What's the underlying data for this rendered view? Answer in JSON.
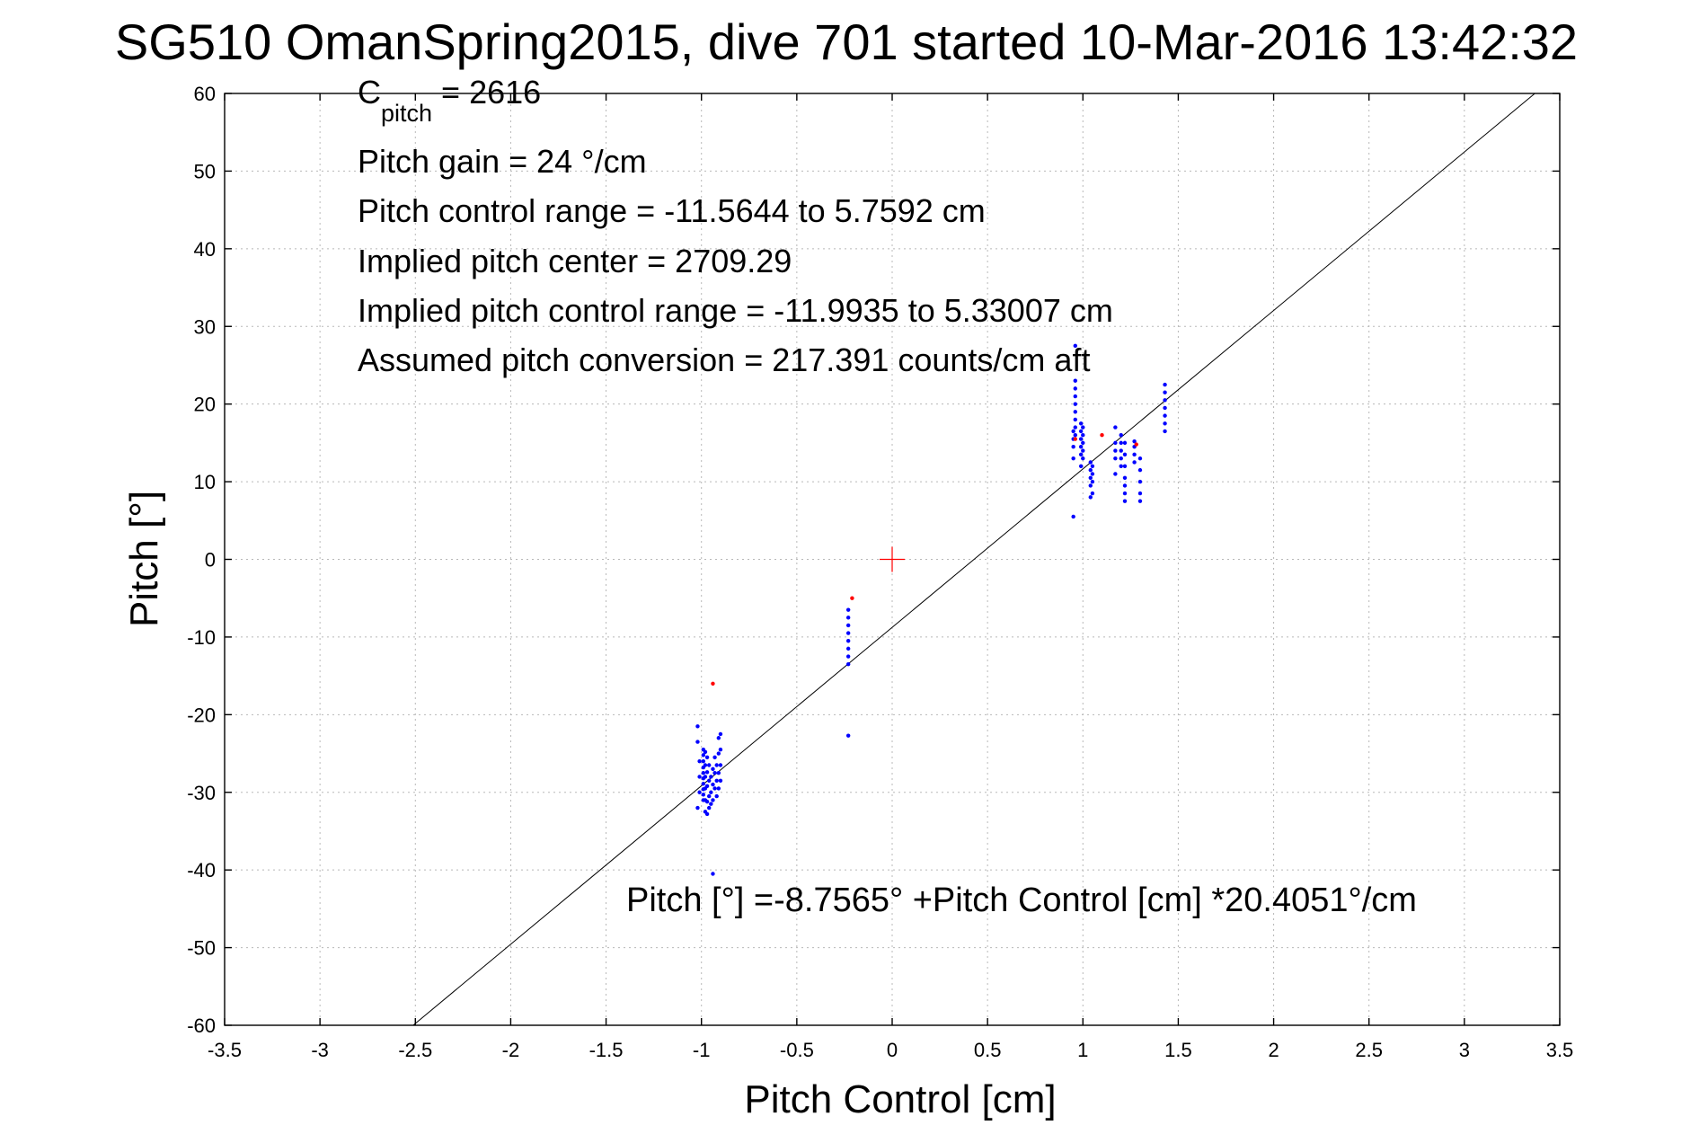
{
  "chart_data": {
    "type": "scatter",
    "title": "SG510 OmanSpring2015, dive 701 started 10-Mar-2016 13:42:32",
    "xlabel": "Pitch Control [cm]",
    "ylabel": "Pitch [°]",
    "xlim": [
      -3.5,
      3.5
    ],
    "ylim": [
      -60,
      60
    ],
    "xticks": [
      -3.5,
      -3,
      -2.5,
      -2,
      -1.5,
      -1,
      -0.5,
      0,
      0.5,
      1,
      1.5,
      2,
      2.5,
      3,
      3.5
    ],
    "yticks": [
      -60,
      -50,
      -40,
      -30,
      -20,
      -10,
      0,
      10,
      20,
      30,
      40,
      50,
      60
    ],
    "grid": true,
    "colors": {
      "observed": "#0000ff",
      "excluded": "#ff0000",
      "fit_line": "#000000",
      "center_marker": "#ff0000"
    },
    "annotations": {
      "c_pitch_symbol": "C",
      "c_pitch_subscript": "pitch",
      "c_pitch_value": " = 2616",
      "pitch_gain": "Pitch gain = 24 °/cm",
      "pitch_control_range": "Pitch control range = -11.5644 to 5.7592 cm",
      "implied_pitch_center": "Implied pitch center = 2709.29",
      "implied_pitch_control_range": "Implied pitch control range = -11.9935 to 5.33007 cm",
      "assumed_pitch_conversion": "Assumed pitch conversion = 217.391 counts/cm aft",
      "fit_equation": "Pitch [°] =-8.7565° +Pitch Control [cm] *20.4051°/cm"
    },
    "fit_line": {
      "intercept": -8.7565,
      "slope": 20.4051
    },
    "center_marker": {
      "x": 0,
      "y": 0
    },
    "series": [
      {
        "color": "#0000ff",
        "points": [
          [
            -1.02,
            -21.5
          ],
          [
            -1.02,
            -23.5
          ],
          [
            -1.01,
            -26
          ],
          [
            -1.01,
            -28
          ],
          [
            -1.01,
            -30
          ],
          [
            -1.02,
            -32
          ],
          [
            -0.99,
            -24.5
          ],
          [
            -0.99,
            -25.2
          ],
          [
            -0.99,
            -26
          ],
          [
            -0.99,
            -26.8
          ],
          [
            -0.99,
            -27.5
          ],
          [
            -0.99,
            -28.2
          ],
          [
            -0.99,
            -28.9
          ],
          [
            -0.99,
            -29.6
          ],
          [
            -0.99,
            -30.3
          ],
          [
            -0.99,
            -31
          ],
          [
            -0.98,
            -24.8
          ],
          [
            -0.98,
            -26.5
          ],
          [
            -0.98,
            -28
          ],
          [
            -0.98,
            -29.5
          ],
          [
            -0.98,
            -31
          ],
          [
            -0.98,
            -32.5
          ],
          [
            -0.97,
            -25.5
          ],
          [
            -0.97,
            -27.4
          ],
          [
            -0.97,
            -29.2
          ],
          [
            -0.97,
            -31.2
          ],
          [
            -0.97,
            -32.8
          ],
          [
            -0.96,
            -26.5
          ],
          [
            -0.96,
            -28.5
          ],
          [
            -0.96,
            -30.5
          ],
          [
            -0.96,
            -32
          ],
          [
            -0.95,
            -28
          ],
          [
            -0.95,
            -30
          ],
          [
            -0.95,
            -31.5
          ],
          [
            -0.94,
            -40.5
          ],
          [
            -0.94,
            -27
          ],
          [
            -0.94,
            -29
          ],
          [
            -0.94,
            -31
          ],
          [
            -0.93,
            -25.5
          ],
          [
            -0.93,
            -27.5
          ],
          [
            -0.93,
            -29.5
          ],
          [
            -0.92,
            -26.5
          ],
          [
            -0.92,
            -28.5
          ],
          [
            -0.92,
            -30.5
          ],
          [
            -0.91,
            -23
          ],
          [
            -0.91,
            -25
          ],
          [
            -0.91,
            -27.5
          ],
          [
            -0.91,
            -29.5
          ],
          [
            -0.9,
            -22.5
          ],
          [
            -0.9,
            -24.5
          ],
          [
            -0.9,
            -26.5
          ],
          [
            -0.9,
            -28.5
          ],
          [
            -0.23,
            -6.5
          ],
          [
            -0.23,
            -7.5
          ],
          [
            -0.23,
            -8.5
          ],
          [
            -0.23,
            -9.5
          ],
          [
            -0.23,
            -10.5
          ],
          [
            -0.23,
            -11.5
          ],
          [
            -0.23,
            -12.5
          ],
          [
            -0.23,
            -13.5
          ],
          [
            -0.23,
            -22.7
          ],
          [
            0.95,
            5.5
          ],
          [
            0.95,
            13
          ],
          [
            0.95,
            14.5
          ],
          [
            0.95,
            15.5
          ],
          [
            0.95,
            16.5
          ],
          [
            0.96,
            16
          ],
          [
            0.96,
            17
          ],
          [
            0.96,
            18
          ],
          [
            0.96,
            19
          ],
          [
            0.96,
            20
          ],
          [
            0.96,
            21
          ],
          [
            0.96,
            22
          ],
          [
            0.96,
            23
          ],
          [
            0.96,
            27.5
          ],
          [
            0.99,
            12
          ],
          [
            0.99,
            13.5
          ],
          [
            0.99,
            14.5
          ],
          [
            0.99,
            15.5
          ],
          [
            0.99,
            16.5
          ],
          [
            0.99,
            17.5
          ],
          [
            1.0,
            13
          ],
          [
            1.0,
            14
          ],
          [
            1.0,
            15
          ],
          [
            1.0,
            16
          ],
          [
            1.0,
            17
          ],
          [
            1.04,
            8
          ],
          [
            1.04,
            9.5
          ],
          [
            1.04,
            10.5
          ],
          [
            1.04,
            11.5
          ],
          [
            1.04,
            12.5
          ],
          [
            1.05,
            8.5
          ],
          [
            1.05,
            10
          ],
          [
            1.05,
            11
          ],
          [
            1.05,
            12
          ],
          [
            1.17,
            11
          ],
          [
            1.17,
            13
          ],
          [
            1.17,
            14
          ],
          [
            1.17,
            15
          ],
          [
            1.17,
            17
          ],
          [
            1.2,
            12
          ],
          [
            1.2,
            13
          ],
          [
            1.2,
            14
          ],
          [
            1.2,
            15
          ],
          [
            1.2,
            16
          ],
          [
            1.22,
            7.5
          ],
          [
            1.22,
            8.5
          ],
          [
            1.22,
            9.5
          ],
          [
            1.22,
            10.5
          ],
          [
            1.22,
            12
          ],
          [
            1.22,
            13.5
          ],
          [
            1.22,
            15
          ],
          [
            1.27,
            12.5
          ],
          [
            1.27,
            13.5
          ],
          [
            1.27,
            14.5
          ],
          [
            1.27,
            15.2
          ],
          [
            1.3,
            7.5
          ],
          [
            1.3,
            8.5
          ],
          [
            1.3,
            10
          ],
          [
            1.3,
            11.5
          ],
          [
            1.3,
            13
          ],
          [
            1.43,
            16.5
          ],
          [
            1.43,
            17.5
          ],
          [
            1.43,
            18.5
          ],
          [
            1.43,
            19.5
          ],
          [
            1.43,
            20.5
          ],
          [
            1.43,
            21.5
          ],
          [
            1.43,
            22.5
          ]
        ]
      },
      {
        "color": "#ff0000",
        "points": [
          [
            -0.94,
            -16
          ],
          [
            -0.21,
            -5
          ],
          [
            0.96,
            15.5
          ],
          [
            1.1,
            16
          ],
          [
            1.28,
            14.8
          ]
        ]
      }
    ]
  }
}
